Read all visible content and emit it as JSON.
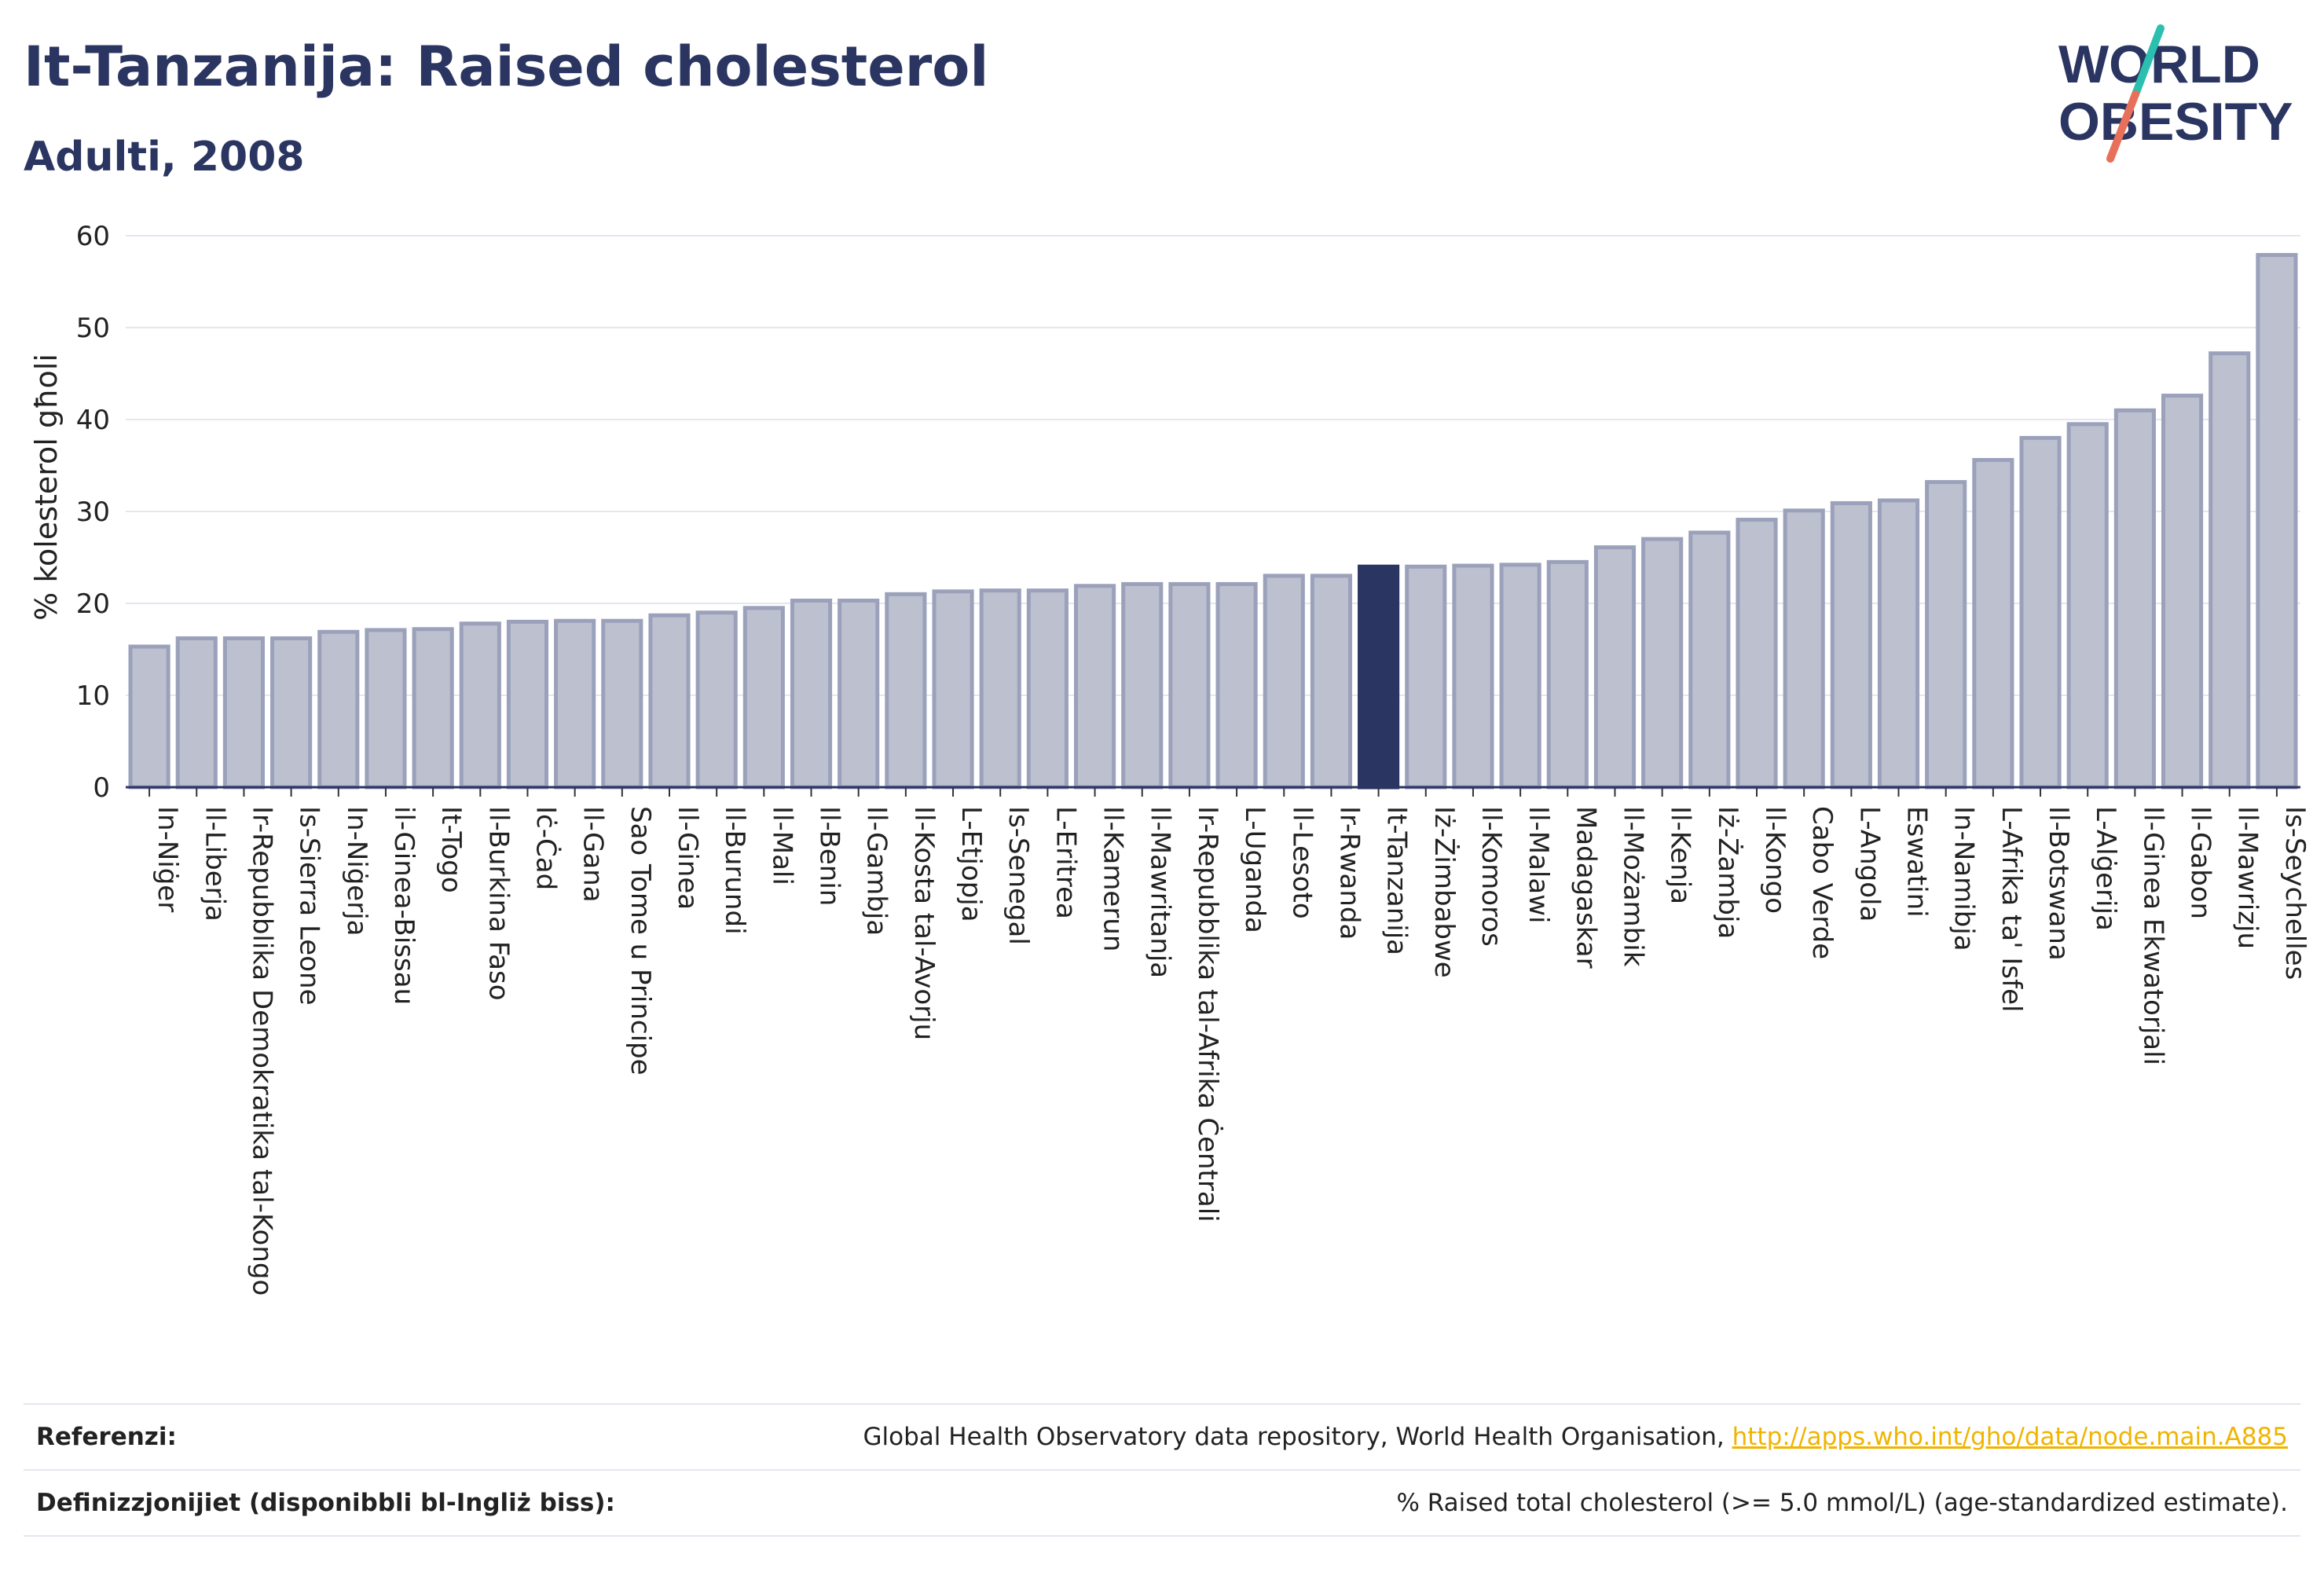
{
  "header": {
    "title": "It-Tanzanija: Raised cholesterol",
    "subtitle": "Adulti, 2008"
  },
  "logo": {
    "line1": "WORLD",
    "line2": "OBESITY"
  },
  "colors": {
    "title": "#2b3561",
    "bar_default": "#bcc0cf",
    "bar_border": "#9ba1bb",
    "bar_highlight": "#2b3561",
    "grid": "#e6e7ee",
    "link": "#f0b400",
    "logo_navy": "#2b3561",
    "logo_teal": "#2bbfb0",
    "logo_coral": "#e8705a"
  },
  "chart_data": {
    "type": "bar",
    "title": "It-Tanzanija: Raised cholesterol",
    "subtitle": "Adulti, 2008",
    "xlabel": "",
    "ylabel": "% kolesterol għoli",
    "ylim": [
      0,
      60
    ],
    "yticks": [
      0,
      10,
      20,
      30,
      40,
      50,
      60
    ],
    "grid": true,
    "highlight": "It-Tanzanija",
    "categories": [
      "In-Niġer",
      "Il-Liberja",
      "Ir-Repubblika Demokratika tal-Kongo",
      "Is-Sierra Leone",
      "In-Niġerja",
      "il-Ginea-Bissau",
      "It-Togo",
      "Il-Burkina Faso",
      "Iċ-Ċad",
      "Il-Gana",
      "Sao Tome u Principe",
      "Il-Ginea",
      "Il-Burundi",
      "Il-Mali",
      "Il-Benin",
      "Il-Gambja",
      "Il-Kosta tal-Avorju",
      "L-Etjopja",
      "Is-Senegal",
      "L-Eritrea",
      "Il-Kamerun",
      "Il-Mawritanja",
      "Ir-Repubblika tal-Afrika Ċentrali",
      "L-Uganda",
      "Il-Lesoto",
      "Ir-Rwanda",
      "It-Tanzanija",
      "Iż-Żimbabwe",
      "Il-Komoros",
      "Il-Malawi",
      "Madagaskar",
      "Il-Możambik",
      "Il-Kenja",
      "Iż-Żambja",
      "Il-Kongo",
      "Cabo Verde",
      "L-Angola",
      "Eswatini",
      "In-Namibja",
      "L-Afrika ta' Isfel",
      "Il-Botswana",
      "L-Alġerija",
      "Il-Ginea Ekwatorjali",
      "Il-Gabon",
      "Il-Mawrizju",
      "Is-Seychelles"
    ],
    "values": [
      15.3,
      16.2,
      16.2,
      16.2,
      16.9,
      17.1,
      17.2,
      17.8,
      18.0,
      18.1,
      18.1,
      18.7,
      19.0,
      19.5,
      20.3,
      20.3,
      21.0,
      21.3,
      21.4,
      21.4,
      21.9,
      22.1,
      22.1,
      22.1,
      23.0,
      23.0,
      24.0,
      24.0,
      24.1,
      24.2,
      24.5,
      26.1,
      27.0,
      27.7,
      29.1,
      30.1,
      30.9,
      31.2,
      33.2,
      35.6,
      38.0,
      39.5,
      41.0,
      42.6,
      47.2,
      57.9
    ]
  },
  "footer": {
    "references_label": "Referenzi:",
    "references_text": "Global Health Observatory data repository, World Health Organisation,",
    "references_link": "http://apps.who.int/gho/data/node.main.A885",
    "definitions_label": "Definizzjonijiet (disponibbli bl-Ingliż biss):",
    "definitions_text": "% Raised total cholesterol (>= 5.0 mmol/L) (age-standardized estimate)."
  }
}
